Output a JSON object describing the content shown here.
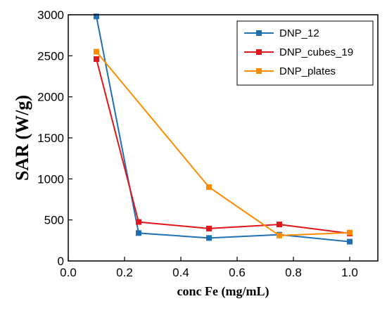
{
  "chart_data": {
    "type": "line",
    "title": "",
    "xlabel": "conc Fe (mg/mL)",
    "ylabel": "SAR (W/g)",
    "xlim": [
      0.0,
      1.1
    ],
    "ylim": [
      0,
      3000
    ],
    "xticks": [
      0.0,
      0.2,
      0.4,
      0.6,
      0.8,
      1.0
    ],
    "xtick_labels": [
      "0.0",
      "0.2",
      "0.4",
      "0.6",
      "0.8",
      "1.0"
    ],
    "yticks": [
      0,
      500,
      1000,
      1500,
      2000,
      2500,
      3000
    ],
    "ytick_labels": [
      "0",
      "500",
      "1000",
      "1500",
      "2000",
      "2500",
      "3000"
    ],
    "grid": false,
    "legend_position": "top-right",
    "series": [
      {
        "name": "DNP_12",
        "color": "#1f6fb4",
        "marker": "square",
        "x": [
          0.1,
          0.25,
          0.5,
          0.75,
          1.0
        ],
        "y": [
          2980,
          340,
          280,
          320,
          235
        ]
      },
      {
        "name": "DNP_cubes_19",
        "color": "#e0161b",
        "marker": "square",
        "x": [
          0.1,
          0.25,
          0.5,
          0.75,
          1.0
        ],
        "y": [
          2460,
          475,
          395,
          445,
          335
        ]
      },
      {
        "name": "DNP_plates",
        "color": "#ff8c00",
        "marker": "square",
        "x": [
          0.1,
          0.5,
          0.75,
          1.0
        ],
        "y": [
          2550,
          900,
          310,
          345
        ]
      }
    ]
  }
}
